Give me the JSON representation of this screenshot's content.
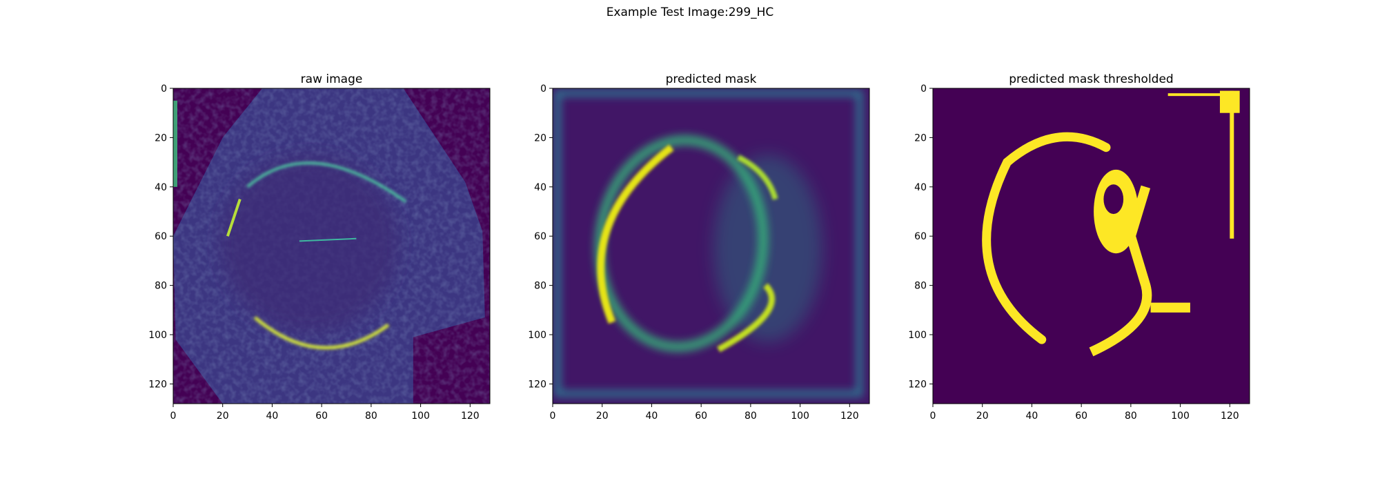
{
  "figure": {
    "suptitle": "Example Test Image:299_HC"
  },
  "chart_data": [
    {
      "type": "heatmap",
      "title": "raw image",
      "image_size": [
        128,
        128
      ],
      "xlim": [
        0,
        128
      ],
      "ylim": [
        128,
        0
      ],
      "xticks": [
        "0",
        "20",
        "40",
        "60",
        "80",
        "100",
        "120"
      ],
      "yticks": [
        "0",
        "20",
        "40",
        "60",
        "80",
        "100",
        "120"
      ],
      "colormap": [
        "#440154",
        "#3b528b",
        "#21918c",
        "#5ec962",
        "#fde725"
      ],
      "content": "fetal head ultrasound, bright elliptical skull outline"
    },
    {
      "type": "heatmap",
      "title": "predicted mask",
      "image_size": [
        128,
        128
      ],
      "xlim": [
        0,
        128
      ],
      "ylim": [
        128,
        0
      ],
      "xticks": [
        "0",
        "20",
        "40",
        "60",
        "80",
        "100",
        "120"
      ],
      "yticks": [
        "0",
        "20",
        "40",
        "60",
        "80",
        "100",
        "120"
      ],
      "colormap": [
        "#440154",
        "#3b528b",
        "#21918c",
        "#5ec962",
        "#fde725"
      ],
      "content": "continuous probability map of head contour"
    },
    {
      "type": "heatmap",
      "title": "predicted mask thresholded",
      "image_size": [
        128,
        128
      ],
      "xlim": [
        0,
        128
      ],
      "ylim": [
        128,
        0
      ],
      "xticks": [
        "0",
        "20",
        "40",
        "60",
        "80",
        "100",
        "120"
      ],
      "yticks": [
        "0",
        "20",
        "40",
        "60",
        "80",
        "100",
        "120"
      ],
      "colormap": [
        "#440154",
        "#fde725"
      ],
      "content": "binary mask of head contour"
    }
  ]
}
